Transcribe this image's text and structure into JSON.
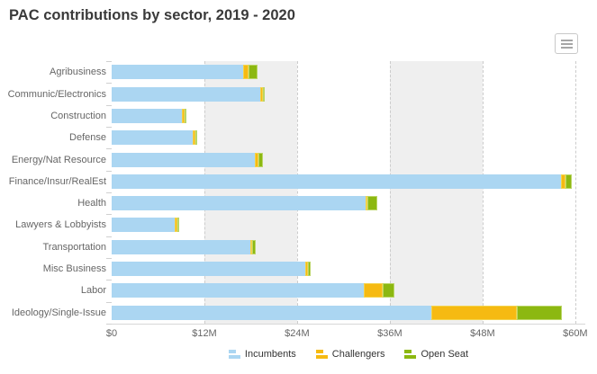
{
  "chart_data": {
    "type": "bar",
    "orientation": "horizontal-stacked",
    "title": "PAC contributions by sector, 2019 - 2020",
    "unit": "$M",
    "categories": [
      "Agribusiness",
      "Communic/Electronics",
      "Construction",
      "Defense",
      "Energy/Nat Resource",
      "Finance/Insur/RealEst",
      "Health",
      "Lawyers & Lobbyists",
      "Transportation",
      "Misc Business",
      "Labor",
      "Ideology/Single-Issue"
    ],
    "series": [
      {
        "name": "Incumbents",
        "color": "#abd6f2",
        "border": "#abd6f2",
        "values": [
          17.0,
          19.2,
          9.1,
          10.5,
          18.5,
          58.1,
          32.9,
          8.2,
          17.9,
          25.0,
          32.6,
          41.4
        ]
      },
      {
        "name": "Challengers",
        "color": "#f6ba12",
        "border": "#f3d34c",
        "values": [
          0.7,
          0.4,
          0.3,
          0.3,
          0.5,
          0.6,
          0.2,
          0.3,
          0.1,
          0.45,
          2.5,
          11.0
        ]
      },
      {
        "name": "Open Seat",
        "color": "#8cb811",
        "border": "#bad566",
        "values": [
          1.2,
          0.2,
          0.3,
          0.1,
          0.6,
          0.9,
          1.2,
          0.3,
          0.5,
          0.25,
          1.5,
          5.9
        ]
      }
    ],
    "xticks": [
      {
        "label": "$0",
        "value": 0
      },
      {
        "label": "$12M",
        "value": 12
      },
      {
        "label": "$24M",
        "value": 24
      },
      {
        "label": "$36M",
        "value": 36
      },
      {
        "label": "$48M",
        "value": 48
      },
      {
        "label": "$60M",
        "value": 60
      }
    ],
    "xmax": 61.3,
    "bands": [
      [
        12,
        24
      ],
      [
        36,
        48
      ]
    ],
    "band_color": "#efefef",
    "gridline_style": "dashed",
    "legend_position": "bottom-center"
  },
  "toolbar": {
    "context_menu_tooltip": "Chart context menu"
  }
}
